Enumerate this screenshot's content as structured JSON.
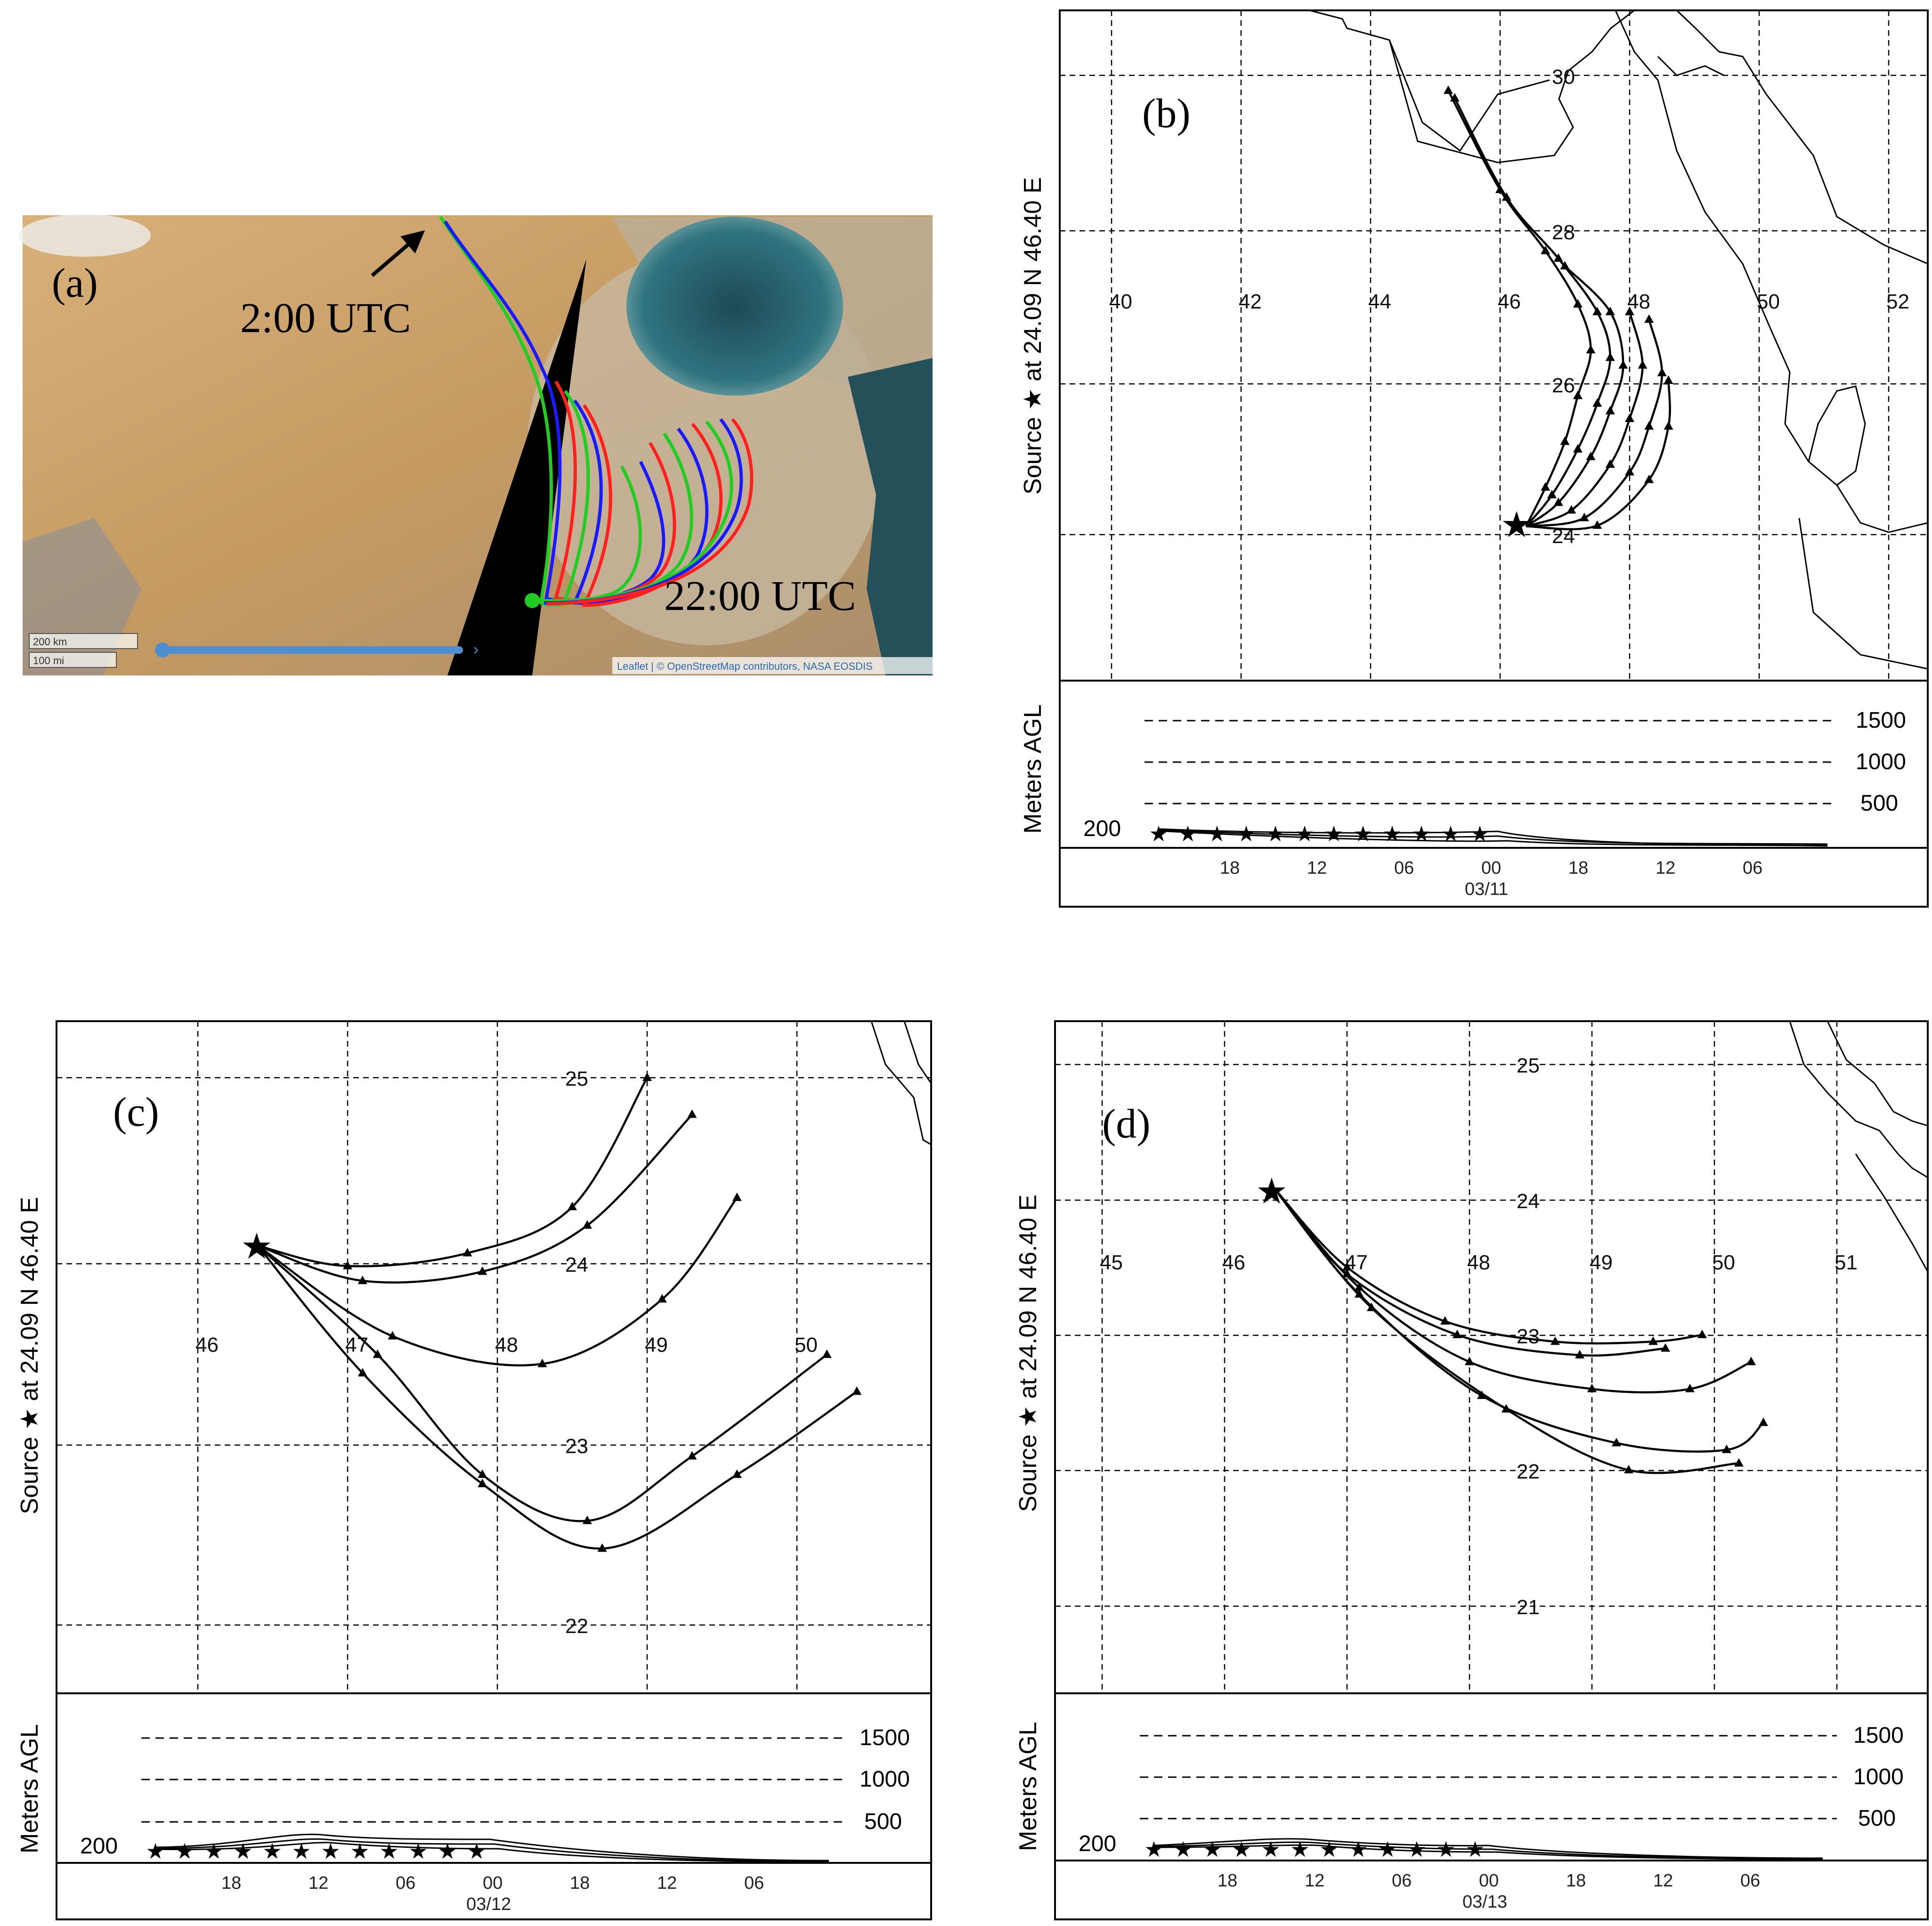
{
  "panels": {
    "a": {
      "tag": "(a)",
      "label_start": "2:00 UTC",
      "label_end": "22:00 UTC",
      "scale_km": "200 km",
      "scale_mi": "100 mi",
      "attribution": "Leaflet | © OpenStreetMap contributors, NASA EOSDIS"
    },
    "b": {
      "tag": "(b)",
      "side_label": "Source ★  at   24.09 N   46.40 E",
      "lon_labels": [
        "40",
        "42",
        "44",
        "46",
        "48",
        "50",
        "52"
      ],
      "lat_labels": [
        "30",
        "28",
        "26",
        "24"
      ],
      "height_labels": [
        "1500",
        "1000",
        "500"
      ],
      "source_height": "200",
      "time_ticks": [
        "18",
        "12",
        "06",
        "00",
        "18",
        "12",
        "06"
      ],
      "date": "03/11",
      "y_axis_label": "Meters AGL"
    },
    "c": {
      "tag": "(c)",
      "side_label": "Source ★  at   24.09 N   46.40 E",
      "lon_labels": [
        "46",
        "47",
        "48",
        "49",
        "50"
      ],
      "lat_labels": [
        "25",
        "24",
        "23",
        "22"
      ],
      "height_labels": [
        "1500",
        "1000",
        "500"
      ],
      "source_height": "200",
      "time_ticks": [
        "18",
        "12",
        "06",
        "00",
        "18",
        "12",
        "06"
      ],
      "date": "03/12",
      "y_axis_label": "Meters AGL"
    },
    "d": {
      "tag": "(d)",
      "side_label": "Source ★  at   24.09 N   46.40 E",
      "lon_labels": [
        "45",
        "46",
        "47",
        "48",
        "49",
        "50",
        "51"
      ],
      "lat_labels": [
        "25",
        "24",
        "23",
        "22",
        "21"
      ],
      "height_labels": [
        "1500",
        "1000",
        "500"
      ],
      "source_height": "200",
      "time_ticks": [
        "18",
        "12",
        "06",
        "00",
        "18",
        "12",
        "06"
      ],
      "date": "03/13",
      "y_axis_label": "Meters AGL"
    }
  },
  "colors": {
    "trajectory": "#000000",
    "overlay_red": "#ff2020",
    "overlay_blue": "#1a1aff",
    "overlay_green": "#22cc22",
    "desert": "#c9a06a",
    "sea": "#2f6f7a"
  },
  "chart_data": [
    {
      "type": "line",
      "panel": "b",
      "source": {
        "lat": 24.09,
        "lon": 46.4
      },
      "series": [
        {
          "x": [
            46.4,
            46.7,
            47.0,
            47.2,
            47.4,
            47.2,
            46.7,
            46.0,
            45.2
          ],
          "y": [
            24.09,
            24.6,
            25.2,
            25.8,
            26.4,
            27.0,
            27.7,
            28.5,
            29.8
          ]
        },
        {
          "x": [
            46.4,
            46.8,
            47.2,
            47.5,
            47.7,
            47.5,
            46.9,
            46.1,
            45.3
          ],
          "y": [
            24.09,
            24.5,
            25.1,
            25.7,
            26.3,
            26.9,
            27.6,
            28.4,
            29.7
          ]
        },
        {
          "x": [
            46.4,
            46.9,
            47.4,
            47.7,
            47.9,
            47.7,
            47.0
          ],
          "y": [
            24.09,
            24.4,
            25.0,
            25.6,
            26.2,
            26.9,
            27.5
          ]
        },
        {
          "x": [
            46.4,
            47.1,
            47.7,
            48.0,
            48.2,
            48.0
          ],
          "y": [
            24.09,
            24.3,
            24.9,
            25.5,
            26.2,
            26.9
          ]
        },
        {
          "x": [
            46.4,
            47.3,
            48.0,
            48.3,
            48.5,
            48.3
          ],
          "y": [
            24.09,
            24.2,
            24.8,
            25.4,
            26.1,
            26.8
          ]
        },
        {
          "x": [
            46.4,
            47.5,
            48.3,
            48.6,
            48.6
          ],
          "y": [
            24.09,
            24.1,
            24.7,
            25.4,
            26.0
          ]
        }
      ]
    },
    {
      "type": "line",
      "panel": "c",
      "source": {
        "lat": 24.09,
        "lon": 46.4
      },
      "series": [
        {
          "x": [
            46.4,
            47.0,
            47.8,
            48.5,
            49.0
          ],
          "y": [
            24.09,
            23.98,
            24.05,
            24.3,
            25.0
          ]
        },
        {
          "x": [
            46.4,
            47.1,
            47.9,
            48.6,
            49.3
          ],
          "y": [
            24.09,
            23.9,
            23.95,
            24.2,
            24.8
          ]
        },
        {
          "x": [
            46.4,
            47.3,
            48.3,
            49.1,
            49.6
          ],
          "y": [
            24.09,
            23.6,
            23.45,
            23.8,
            24.35
          ]
        },
        {
          "x": [
            46.4,
            47.2,
            47.9,
            48.6,
            49.3,
            50.2
          ],
          "y": [
            24.09,
            23.5,
            22.85,
            22.6,
            22.95,
            23.5
          ]
        },
        {
          "x": [
            46.4,
            47.1,
            47.9,
            48.7,
            49.6,
            50.4
          ],
          "y": [
            24.09,
            23.4,
            22.8,
            22.45,
            22.85,
            23.3
          ]
        }
      ]
    },
    {
      "type": "line",
      "panel": "d",
      "source": {
        "lat": 24.09,
        "lon": 46.4
      },
      "series": [
        {
          "x": [
            46.4,
            47.0,
            47.8,
            48.7,
            49.5,
            49.9
          ],
          "y": [
            24.09,
            23.5,
            23.1,
            22.95,
            22.95,
            23.0
          ]
        },
        {
          "x": [
            46.4,
            47.0,
            47.9,
            48.9,
            49.6
          ],
          "y": [
            24.09,
            23.45,
            23.0,
            22.85,
            22.9
          ]
        },
        {
          "x": [
            46.4,
            47.1,
            48.0,
            49.0,
            49.8,
            50.3
          ],
          "y": [
            24.09,
            23.35,
            22.8,
            22.6,
            22.6,
            22.8
          ]
        },
        {
          "x": [
            46.4,
            47.1,
            48.1,
            49.2,
            50.1,
            50.4
          ],
          "y": [
            24.09,
            23.3,
            22.55,
            22.2,
            22.15,
            22.35
          ]
        },
        {
          "x": [
            46.4,
            47.2,
            48.3,
            49.3,
            50.2
          ],
          "y": [
            24.09,
            23.2,
            22.45,
            22.0,
            22.05
          ]
        }
      ]
    }
  ]
}
